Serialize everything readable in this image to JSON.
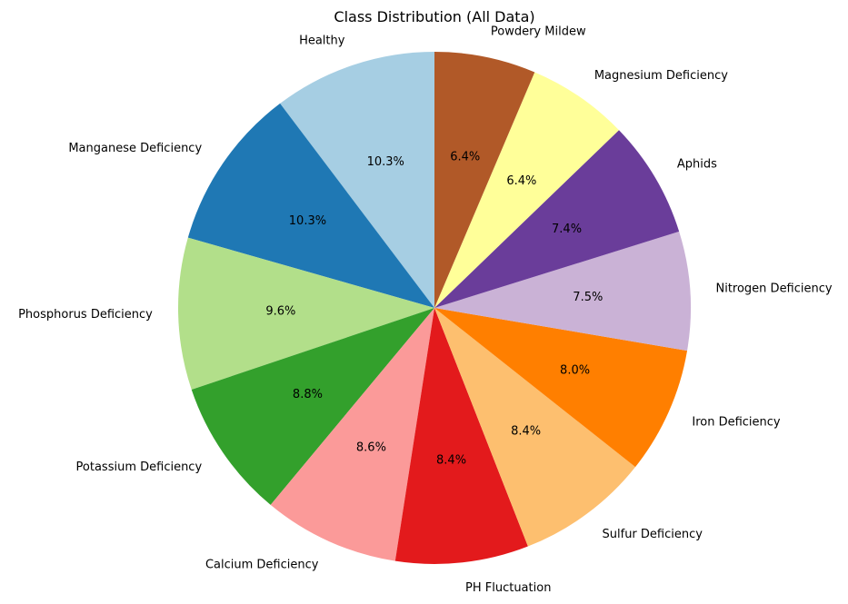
{
  "chart_data": {
    "type": "pie",
    "title": "Class Distribution (All Data)",
    "start_angle_deg": 90,
    "direction": "counterclockwise",
    "slices": [
      {
        "label": "Healthy",
        "value": 10.3,
        "pct_label": "10.3%",
        "color": "#a6cee3"
      },
      {
        "label": "Manganese Deficiency",
        "value": 10.3,
        "pct_label": "10.3%",
        "color": "#1f78b4"
      },
      {
        "label": "Phosphorus Deficiency",
        "value": 9.6,
        "pct_label": "9.6%",
        "color": "#b2df8a"
      },
      {
        "label": "Potassium Deficiency",
        "value": 8.8,
        "pct_label": "8.8%",
        "color": "#33a02c"
      },
      {
        "label": "Calcium Deficiency",
        "value": 8.6,
        "pct_label": "8.6%",
        "color": "#fb9a99"
      },
      {
        "label": "PH Fluctuation",
        "value": 8.4,
        "pct_label": "8.4%",
        "color": "#e31a1c"
      },
      {
        "label": "Sulfur Deficiency",
        "value": 8.4,
        "pct_label": "8.4%",
        "color": "#fdbf6f"
      },
      {
        "label": "Iron Deficiency",
        "value": 8.0,
        "pct_label": "8.0%",
        "color": "#ff7f00"
      },
      {
        "label": "Nitrogen Deficiency",
        "value": 7.5,
        "pct_label": "7.5%",
        "color": "#cab2d6"
      },
      {
        "label": "Aphids",
        "value": 7.4,
        "pct_label": "7.4%",
        "color": "#6a3d9a"
      },
      {
        "label": "Magnesium Deficiency",
        "value": 6.4,
        "pct_label": "6.4%",
        "color": "#ffff99"
      },
      {
        "label": "Powdery Mildew",
        "value": 6.4,
        "pct_label": "6.4%",
        "color": "#b15928"
      }
    ]
  }
}
